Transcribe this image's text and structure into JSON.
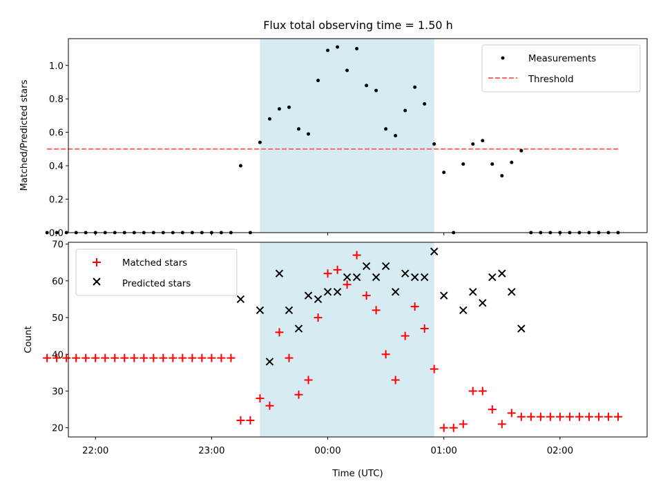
{
  "title": "Flux total observing time = 1.50 h",
  "colors": {
    "span": "#add8e6",
    "measure": "#000000",
    "threshold": "#ff6666",
    "matched": "#ff0000",
    "predicted": "#000000"
  },
  "chart_data": [
    {
      "type": "scatter",
      "ylabel": "Matched/Predicted stars",
      "xlim": [
        "21:46",
        "02:45"
      ],
      "ylim": [
        0,
        1.16
      ],
      "y_ticks": [
        0.0,
        0.2,
        0.4,
        0.6,
        0.8,
        1.0
      ],
      "y_tick_labels": [
        "0.0",
        "0.2",
        "0.4",
        "0.6",
        "0.8",
        "1.0"
      ],
      "highlight_span": [
        "23:25",
        "00:55"
      ],
      "legend": {
        "position": "upper right",
        "entries": [
          "Measurements",
          "Threshold"
        ]
      },
      "threshold": {
        "name": "Threshold",
        "value": 0.5,
        "x_range": [
          "21:35",
          "02:30"
        ]
      },
      "series": [
        {
          "name": "Measurements",
          "x": [
            "21:35",
            "21:40",
            "21:45",
            "21:50",
            "21:55",
            "22:00",
            "22:05",
            "22:10",
            "22:15",
            "22:20",
            "22:25",
            "22:30",
            "22:35",
            "22:40",
            "22:45",
            "22:50",
            "22:55",
            "23:00",
            "23:05",
            "23:10",
            "23:15",
            "23:20",
            "23:25",
            "23:30",
            "23:35",
            "23:40",
            "23:45",
            "23:50",
            "23:55",
            "00:00",
            "00:05",
            "00:10",
            "00:15",
            "00:20",
            "00:25",
            "00:30",
            "00:35",
            "00:40",
            "00:45",
            "00:50",
            "00:55",
            "01:00",
            "01:05",
            "01:10",
            "01:15",
            "01:20",
            "01:25",
            "01:30",
            "01:35",
            "01:40",
            "01:45",
            "01:50",
            "01:55",
            "02:00",
            "02:05",
            "02:10",
            "02:15",
            "02:20",
            "02:25",
            "02:30"
          ],
          "y": [
            0,
            0,
            0,
            0,
            0,
            0,
            0,
            0,
            0,
            0,
            0,
            0,
            0,
            0,
            0,
            0,
            0,
            0,
            0,
            0,
            0.4,
            0,
            0.54,
            0.68,
            0.74,
            0.75,
            0.62,
            0.59,
            0.91,
            1.09,
            1.11,
            0.97,
            1.1,
            0.88,
            0.85,
            0.62,
            0.58,
            0.73,
            0.87,
            0.77,
            0.53,
            0.36,
            0,
            0.41,
            0.53,
            0.55,
            0.41,
            0.34,
            0.42,
            0.49,
            0,
            0,
            0,
            0,
            0,
            0,
            0,
            0,
            0,
            0
          ]
        }
      ]
    },
    {
      "type": "scatter",
      "ylabel": "Count",
      "xlabel": "Time (UTC)",
      "xlim": [
        "21:46",
        "02:45"
      ],
      "ylim": [
        17.5,
        70.5
      ],
      "y_ticks": [
        20,
        30,
        40,
        50,
        60,
        70
      ],
      "y_tick_labels": [
        "20",
        "30",
        "40",
        "50",
        "60",
        "70"
      ],
      "x_ticks": [
        "22:00",
        "23:00",
        "00:00",
        "01:00",
        "02:00"
      ],
      "x_tick_labels": [
        "22:00",
        "23:00",
        "00:00",
        "01:00",
        "02:00"
      ],
      "highlight_span": [
        "23:25",
        "00:55"
      ],
      "legend": {
        "position": "upper left",
        "entries": [
          "Matched stars",
          "Predicted stars"
        ]
      },
      "series": [
        {
          "name": "Matched stars",
          "x": [
            "21:35",
            "21:40",
            "21:45",
            "21:50",
            "21:55",
            "22:00",
            "22:05",
            "22:10",
            "22:15",
            "22:20",
            "22:25",
            "22:30",
            "22:35",
            "22:40",
            "22:45",
            "22:50",
            "22:55",
            "23:00",
            "23:05",
            "23:10",
            "23:15",
            "23:20",
            "23:25",
            "23:30",
            "23:35",
            "23:40",
            "23:45",
            "23:50",
            "23:55",
            "00:00",
            "00:05",
            "00:10",
            "00:15",
            "00:20",
            "00:25",
            "00:30",
            "00:35",
            "00:40",
            "00:45",
            "00:50",
            "00:55",
            "01:00",
            "01:05",
            "01:10",
            "01:15",
            "01:20",
            "01:25",
            "01:30",
            "01:35",
            "01:40",
            "01:45",
            "01:50",
            "01:55",
            "02:00",
            "02:05",
            "02:10",
            "02:15",
            "02:20",
            "02:25",
            "02:30"
          ],
          "y": [
            39,
            39,
            39,
            39,
            39,
            39,
            39,
            39,
            39,
            39,
            39,
            39,
            39,
            39,
            39,
            39,
            39,
            39,
            39,
            39,
            22,
            22,
            28,
            26,
            46,
            39,
            29,
            33,
            50,
            62,
            63,
            59,
            67,
            56,
            52,
            40,
            33,
            45,
            53,
            47,
            36,
            20,
            20,
            21,
            30,
            30,
            25,
            21,
            24,
            23,
            23,
            23,
            23,
            23,
            23,
            23,
            23,
            23,
            23,
            23
          ]
        },
        {
          "name": "Predicted stars",
          "x": [
            "23:15",
            "23:25",
            "23:30",
            "23:35",
            "23:40",
            "23:45",
            "23:50",
            "23:55",
            "00:00",
            "00:05",
            "00:10",
            "00:15",
            "00:20",
            "00:25",
            "00:30",
            "00:35",
            "00:40",
            "00:45",
            "00:50",
            "00:55",
            "01:00",
            "01:10",
            "01:15",
            "01:20",
            "01:25",
            "01:30",
            "01:35",
            "01:40"
          ],
          "y": [
            55,
            52,
            38,
            62,
            52,
            47,
            56,
            55,
            57,
            57,
            61,
            61,
            64,
            61,
            64,
            57,
            62,
            61,
            61,
            68,
            56,
            52,
            57,
            54,
            61,
            62,
            57,
            47
          ]
        }
      ]
    }
  ]
}
